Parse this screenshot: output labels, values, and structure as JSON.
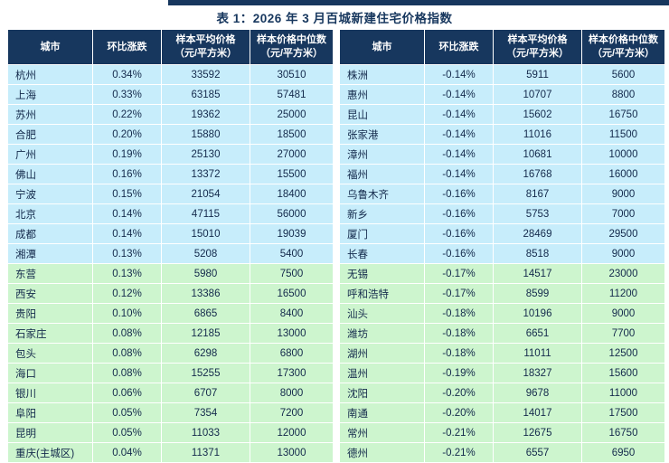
{
  "page": {
    "title": "表 1：2026 年 3 月百城新建住宅价格指数",
    "colors": {
      "header_bg": "#17375E",
      "row_blue": "#C7EDFB",
      "row_green": "#CDF5CE",
      "title_color": "#17375E",
      "top_bar": "#17375E"
    }
  },
  "table": {
    "columns": [
      {
        "label": "城市",
        "sub": ""
      },
      {
        "label": "环比涨跌",
        "sub": ""
      },
      {
        "label": "样本平均价格",
        "sub": "（元/平方米）"
      },
      {
        "label": "样本价格中位数",
        "sub": "（元/平方米）"
      }
    ],
    "left_rows": [
      {
        "city": "杭州",
        "change": "0.34%",
        "avg": "33592",
        "median": "30510",
        "tone": "blue"
      },
      {
        "city": "上海",
        "change": "0.33%",
        "avg": "63185",
        "median": "57481",
        "tone": "blue"
      },
      {
        "city": "苏州",
        "change": "0.22%",
        "avg": "19362",
        "median": "25000",
        "tone": "blue"
      },
      {
        "city": "合肥",
        "change": "0.20%",
        "avg": "15880",
        "median": "18500",
        "tone": "blue"
      },
      {
        "city": "广州",
        "change": "0.19%",
        "avg": "25130",
        "median": "27000",
        "tone": "blue"
      },
      {
        "city": "佛山",
        "change": "0.16%",
        "avg": "13372",
        "median": "15500",
        "tone": "blue"
      },
      {
        "city": "宁波",
        "change": "0.15%",
        "avg": "21054",
        "median": "18400",
        "tone": "blue"
      },
      {
        "city": "北京",
        "change": "0.14%",
        "avg": "47115",
        "median": "56000",
        "tone": "blue"
      },
      {
        "city": "成都",
        "change": "0.14%",
        "avg": "15010",
        "median": "19039",
        "tone": "blue"
      },
      {
        "city": "湘潭",
        "change": "0.13%",
        "avg": "5208",
        "median": "5400",
        "tone": "blue"
      },
      {
        "city": "东营",
        "change": "0.13%",
        "avg": "5980",
        "median": "7500",
        "tone": "green"
      },
      {
        "city": "西安",
        "change": "0.12%",
        "avg": "13386",
        "median": "16500",
        "tone": "green"
      },
      {
        "city": "贵阳",
        "change": "0.10%",
        "avg": "6865",
        "median": "8400",
        "tone": "green"
      },
      {
        "city": "石家庄",
        "change": "0.08%",
        "avg": "12185",
        "median": "13000",
        "tone": "green"
      },
      {
        "city": "包头",
        "change": "0.08%",
        "avg": "6298",
        "median": "6800",
        "tone": "green"
      },
      {
        "city": "海口",
        "change": "0.08%",
        "avg": "15255",
        "median": "17300",
        "tone": "green"
      },
      {
        "city": "银川",
        "change": "0.06%",
        "avg": "6707",
        "median": "8000",
        "tone": "green"
      },
      {
        "city": "阜阳",
        "change": "0.05%",
        "avg": "7354",
        "median": "7200",
        "tone": "green"
      },
      {
        "city": "昆明",
        "change": "0.05%",
        "avg": "11033",
        "median": "12000",
        "tone": "green"
      },
      {
        "city": "重庆(主城区)",
        "change": "0.04%",
        "avg": "11371",
        "median": "13000",
        "tone": "green"
      }
    ],
    "right_rows": [
      {
        "city": "株洲",
        "change": "-0.14%",
        "avg": "5911",
        "median": "5600",
        "tone": "blue"
      },
      {
        "city": "惠州",
        "change": "-0.14%",
        "avg": "10707",
        "median": "8800",
        "tone": "blue"
      },
      {
        "city": "昆山",
        "change": "-0.14%",
        "avg": "15602",
        "median": "16750",
        "tone": "blue"
      },
      {
        "city": "张家港",
        "change": "-0.14%",
        "avg": "11016",
        "median": "11500",
        "tone": "blue"
      },
      {
        "city": "漳州",
        "change": "-0.14%",
        "avg": "10681",
        "median": "10000",
        "tone": "blue"
      },
      {
        "city": "福州",
        "change": "-0.14%",
        "avg": "16768",
        "median": "16000",
        "tone": "blue"
      },
      {
        "city": "乌鲁木齐",
        "change": "-0.16%",
        "avg": "8167",
        "median": "9000",
        "tone": "blue"
      },
      {
        "city": "新乡",
        "change": "-0.16%",
        "avg": "5753",
        "median": "7000",
        "tone": "blue"
      },
      {
        "city": "厦门",
        "change": "-0.16%",
        "avg": "28469",
        "median": "29500",
        "tone": "blue"
      },
      {
        "city": "长春",
        "change": "-0.16%",
        "avg": "8518",
        "median": "9000",
        "tone": "blue"
      },
      {
        "city": "无锡",
        "change": "-0.17%",
        "avg": "14517",
        "median": "23000",
        "tone": "green"
      },
      {
        "city": "呼和浩特",
        "change": "-0.17%",
        "avg": "8599",
        "median": "11200",
        "tone": "green"
      },
      {
        "city": "汕头",
        "change": "-0.18%",
        "avg": "10196",
        "median": "9000",
        "tone": "green"
      },
      {
        "city": "潍坊",
        "change": "-0.18%",
        "avg": "6651",
        "median": "7700",
        "tone": "green"
      },
      {
        "city": "湖州",
        "change": "-0.18%",
        "avg": "11011",
        "median": "12500",
        "tone": "green"
      },
      {
        "city": "温州",
        "change": "-0.19%",
        "avg": "18327",
        "median": "15600",
        "tone": "green"
      },
      {
        "city": "沈阳",
        "change": "-0.20%",
        "avg": "9678",
        "median": "11000",
        "tone": "green"
      },
      {
        "city": "南通",
        "change": "-0.20%",
        "avg": "14017",
        "median": "17500",
        "tone": "green"
      },
      {
        "city": "常州",
        "change": "-0.21%",
        "avg": "12675",
        "median": "16750",
        "tone": "green"
      },
      {
        "city": "德州",
        "change": "-0.21%",
        "avg": "6557",
        "median": "6950",
        "tone": "green"
      }
    ]
  }
}
